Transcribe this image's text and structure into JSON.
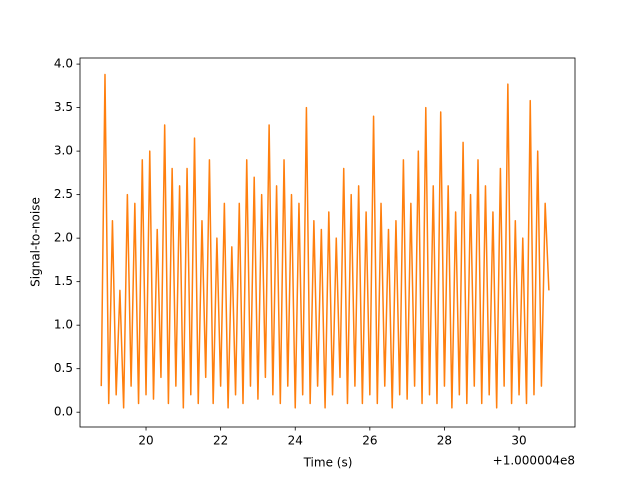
{
  "chart_data": {
    "type": "line",
    "xlabel": "Time (s)",
    "ylabel": "Signal-to-noise",
    "x_offset_label": "+1.000004e8",
    "x": [
      18.8,
      18.9,
      19.0,
      19.1,
      19.2,
      19.3,
      19.4,
      19.5,
      19.6,
      19.7,
      19.8,
      19.9,
      20.0,
      20.1,
      20.2,
      20.3,
      20.4,
      20.5,
      20.6,
      20.7,
      20.8,
      20.9,
      21.0,
      21.1,
      21.2,
      21.3,
      21.4,
      21.5,
      21.6,
      21.7,
      21.8,
      21.9,
      22.0,
      22.1,
      22.2,
      22.3,
      22.4,
      22.5,
      22.6,
      22.7,
      22.8,
      22.9,
      23.0,
      23.1,
      23.2,
      23.3,
      23.4,
      23.5,
      23.6,
      23.7,
      23.8,
      23.9,
      24.0,
      24.1,
      24.2,
      24.3,
      24.4,
      24.5,
      24.6,
      24.7,
      24.8,
      24.9,
      25.0,
      25.1,
      25.2,
      25.3,
      25.4,
      25.5,
      25.6,
      25.7,
      25.8,
      25.9,
      26.0,
      26.1,
      26.2,
      26.3,
      26.4,
      26.5,
      26.6,
      26.7,
      26.8,
      26.9,
      27.0,
      27.1,
      27.2,
      27.3,
      27.4,
      27.5,
      27.6,
      27.7,
      27.8,
      27.9,
      28.0,
      28.1,
      28.2,
      28.3,
      28.4,
      28.5,
      28.6,
      28.7,
      28.8,
      28.9,
      29.0,
      29.1,
      29.2,
      29.3,
      29.4,
      29.5,
      29.6,
      29.7,
      29.8,
      29.9,
      30.0,
      30.1,
      30.2,
      30.3,
      30.4,
      30.5,
      30.6,
      30.7,
      30.8
    ],
    "series": [
      {
        "color": "#ff7f0e",
        "values": [
          0.3,
          3.88,
          0.1,
          2.2,
          0.2,
          1.4,
          0.05,
          2.5,
          0.3,
          2.4,
          0.1,
          2.9,
          0.2,
          3.0,
          0.15,
          2.1,
          0.4,
          3.3,
          0.1,
          2.8,
          0.3,
          2.6,
          0.05,
          2.8,
          0.2,
          3.15,
          0.1,
          2.2,
          0.4,
          2.9,
          0.1,
          2.0,
          0.3,
          2.4,
          0.05,
          1.9,
          0.2,
          2.4,
          0.1,
          2.9,
          0.3,
          2.7,
          0.15,
          2.5,
          0.4,
          3.3,
          0.2,
          2.6,
          0.1,
          2.9,
          0.3,
          2.5,
          0.05,
          2.4,
          0.2,
          3.5,
          0.1,
          2.2,
          0.3,
          2.1,
          0.05,
          2.3,
          0.2,
          2.0,
          0.4,
          2.8,
          0.1,
          2.5,
          0.3,
          2.6,
          0.1,
          2.3,
          0.2,
          3.4,
          0.1,
          2.4,
          0.3,
          2.1,
          0.05,
          2.2,
          0.2,
          2.9,
          0.15,
          2.4,
          0.3,
          3.0,
          0.1,
          3.5,
          0.2,
          2.6,
          0.1,
          3.45,
          0.3,
          2.6,
          0.05,
          2.3,
          0.2,
          3.1,
          0.1,
          2.5,
          0.3,
          2.9,
          0.1,
          2.6,
          0.2,
          2.3,
          0.05,
          2.8,
          0.3,
          3.77,
          0.1,
          2.2,
          0.2,
          2.0,
          0.1,
          3.58,
          0.2,
          3.0,
          0.3,
          2.4,
          1.4
        ]
      }
    ],
    "xlim": [
      18.23,
      31.5
    ],
    "xticks": [
      20,
      22,
      24,
      26,
      28,
      30
    ],
    "ylim": [
      -0.17,
      4.07
    ],
    "yticks": [
      {
        "value": 0,
        "label": "0.0"
      },
      0.5,
      {
        "value": 1,
        "label": "1.0"
      },
      1.5,
      {
        "value": 2,
        "label": "2.0"
      },
      2.5,
      {
        "value": 3,
        "label": "3.0"
      },
      3.5,
      {
        "value": 4,
        "label": "4.0"
      }
    ]
  }
}
